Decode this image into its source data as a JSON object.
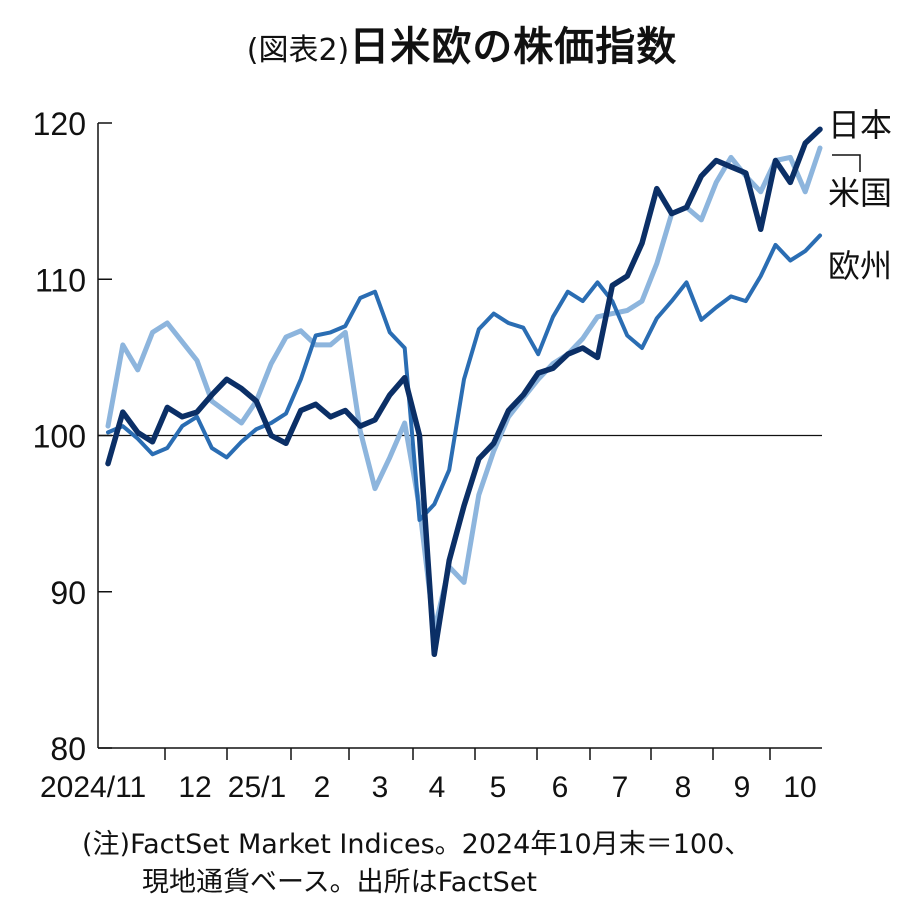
{
  "title": {
    "prefix": "(図表2)",
    "main": "日米欧の株価指数"
  },
  "notes": {
    "line1": "(注)FactSet Market Indices。2024年10月末＝100、",
    "line2": "現地通貨ベース。出所はFactSet"
  },
  "colors": {
    "japan": "#0b2f66",
    "us": "#8db5dd",
    "europe": "#2a6db3",
    "reference": "#111111"
  },
  "chart_data": {
    "type": "line",
    "ylim": [
      80,
      120
    ],
    "yticks": [
      80,
      90,
      100,
      110,
      120
    ],
    "reference_line": 100,
    "x_tick_labels": [
      "2024/11",
      "12",
      "25/1",
      "2",
      "3",
      "4",
      "5",
      "6",
      "7",
      "8",
      "9",
      "10"
    ],
    "x_range": [
      "2024/11",
      "10"
    ],
    "series": [
      {
        "name": "日本",
        "values": [
          98.2,
          101.5,
          100.2,
          99.6,
          101.8,
          101.2,
          101.5,
          102.6,
          103.6,
          103.0,
          102.2,
          100.0,
          99.5,
          101.6,
          102.0,
          101.2,
          101.6,
          100.6,
          101.0,
          102.6,
          103.7,
          100.0,
          86.0,
          92.0,
          95.5,
          98.5,
          99.5,
          101.6,
          102.6,
          104.0,
          104.3,
          105.2,
          105.6,
          105.0,
          109.6,
          110.2,
          112.3,
          115.8,
          114.2,
          114.6,
          116.6,
          117.6,
          117.2,
          116.8,
          113.2,
          117.6,
          116.2,
          118.7,
          119.6
        ]
      },
      {
        "name": "米国",
        "values": [
          100.6,
          105.8,
          104.2,
          106.6,
          107.2,
          106.0,
          104.8,
          102.2,
          101.5,
          100.8,
          102.2,
          104.6,
          106.3,
          106.7,
          105.8,
          105.8,
          106.6,
          100.3,
          96.6,
          98.6,
          100.8,
          95.4,
          87.5,
          91.6,
          90.6,
          96.2,
          99.0,
          101.2,
          102.4,
          103.6,
          104.6,
          105.2,
          106.2,
          107.6,
          107.8,
          108.0,
          108.6,
          111.0,
          114.2,
          114.6,
          113.8,
          116.2,
          117.8,
          116.6,
          115.6,
          117.6,
          117.8,
          115.6,
          118.4
        ]
      },
      {
        "name": "欧州",
        "values": [
          100.2,
          100.6,
          99.8,
          98.8,
          99.2,
          100.6,
          101.2,
          99.2,
          98.6,
          99.6,
          100.4,
          100.8,
          101.4,
          103.6,
          106.4,
          106.6,
          107.0,
          108.8,
          109.2,
          106.6,
          105.6,
          94.6,
          95.6,
          97.8,
          103.6,
          106.8,
          107.8,
          107.2,
          106.9,
          105.2,
          107.6,
          109.2,
          108.6,
          109.8,
          108.6,
          106.4,
          105.6,
          107.5,
          108.6,
          109.8,
          107.4,
          108.2,
          108.9,
          108.6,
          110.2,
          112.2,
          111.2,
          111.8,
          112.8
        ]
      }
    ]
  }
}
